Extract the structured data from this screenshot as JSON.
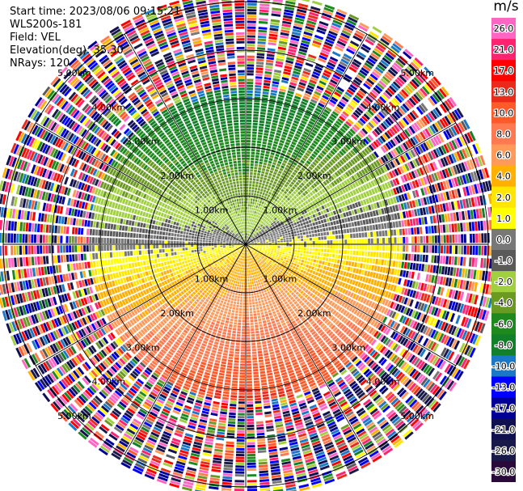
{
  "header": {
    "start_time": "Start time: 2023/08/06 09:15:21",
    "instrument": "WLS200s-181",
    "field": "Field: VEL",
    "elevation": "Elevation(deg): 35.30",
    "nrays": "NRays: 120"
  },
  "chart_data": {
    "type": "ppi",
    "field": "VEL",
    "units": "m/s",
    "nrays": 120,
    "elevation_deg": 35.3,
    "range_rings_km": [
      1.0,
      2.0,
      3.0,
      4.0,
      5.0
    ],
    "range_labels": [
      "1.00km",
      "2.00km",
      "3.00km",
      "4.00km",
      "5.00km"
    ],
    "azimuth_spokes_deg": [
      0,
      30,
      60,
      90,
      120,
      150,
      180,
      210,
      240,
      270,
      300,
      330
    ],
    "max_valid_range_km": 3.2,
    "max_range_km": 5.2,
    "colorbar": {
      "ticks": [
        26.0,
        21.0,
        17.0,
        13.0,
        10.0,
        8.0,
        6.0,
        4.0,
        2.0,
        1.0,
        0.0,
        -1.0,
        -2.0,
        -4.0,
        -6.0,
        -8.0,
        -10.0,
        -13.0,
        -17.0,
        -21.0,
        -26.0,
        -30.0
      ],
      "tick_labels": [
        "26.0",
        "21.0",
        "17.0",
        "13.0",
        "10.0",
        "8.0",
        "6.0",
        "4.0",
        "2.0",
        "1.0",
        "0.0",
        "-1.0",
        "-2.0",
        "-4.0",
        "-6.0",
        "-8.0",
        "-10.0",
        "-13.0",
        "-17.0",
        "-21.0",
        "-26.0",
        "-30.0"
      ],
      "colors": [
        "#ff66c4",
        "#ff2270",
        "#ff0000",
        "#ea2a1a",
        "#ff5a2a",
        "#ff7a50",
        "#ff9a5a",
        "#ffb000",
        "#ffe600",
        "#ffff00",
        "#787878",
        "#5a5a5a",
        "#a0d040",
        "#6a9a22",
        "#1e8a1e",
        "#128028",
        "#1a78c8",
        "#0000ff",
        "#000096",
        "#101050",
        "#1a1a4a",
        "#2a0a3a"
      ]
    },
    "pattern_description": "Approaching velocities (green/blue) to the north, receding (yellow/orange/red) to the south, noisy random colors beyond ~3.2 km"
  }
}
